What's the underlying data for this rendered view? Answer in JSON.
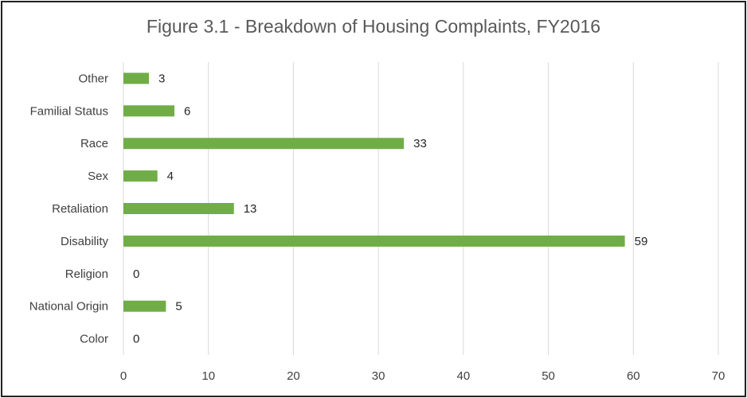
{
  "chart_data": {
    "type": "bar",
    "orientation": "horizontal",
    "title": "Figure 3.1 - Breakdown of Housing Complaints, FY2016",
    "categories": [
      "Other",
      "Familial Status",
      "Race",
      "Sex",
      "Retaliation",
      "Disability",
      "Religion",
      "National Origin",
      "Color"
    ],
    "values": [
      3,
      6,
      33,
      4,
      13,
      59,
      0,
      5,
      0
    ],
    "xlim": [
      0,
      70
    ],
    "xticks": [
      0,
      10,
      20,
      30,
      40,
      50,
      60,
      70
    ],
    "grid": true,
    "data_labels": true,
    "bar_color": "#70ad47",
    "grid_color": "#d9d9d9",
    "xlabel": "",
    "ylabel": ""
  }
}
